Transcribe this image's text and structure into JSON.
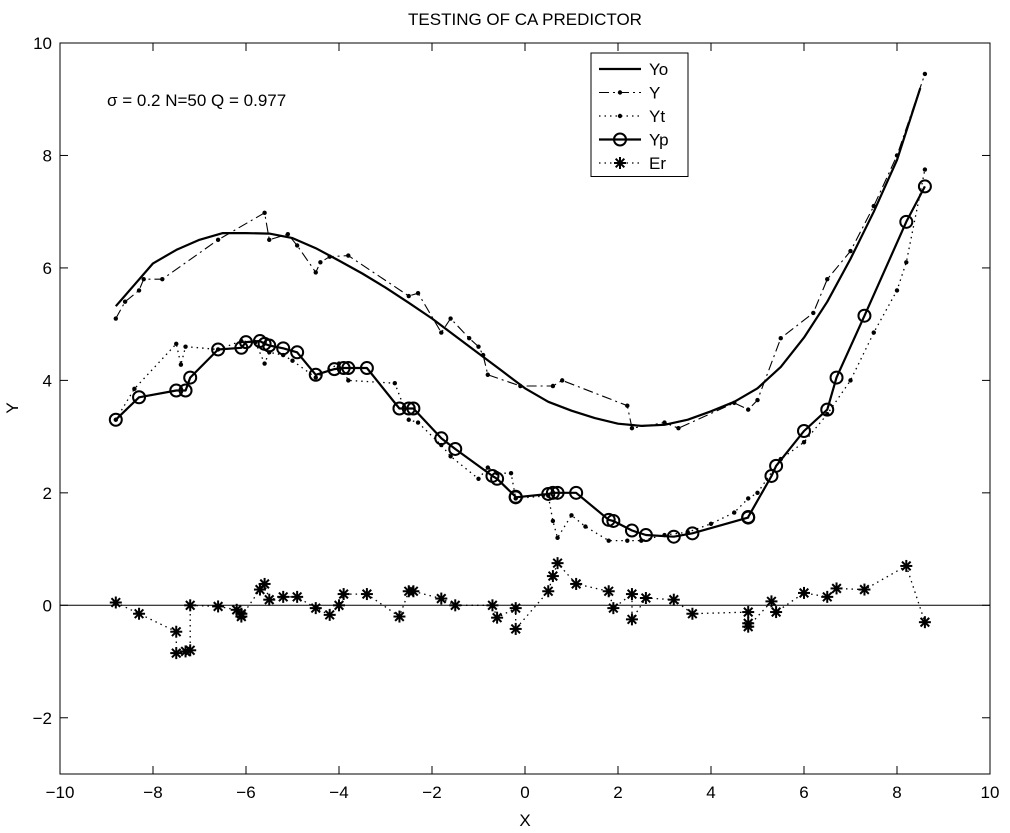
{
  "chart_data": {
    "type": "line",
    "title": "TESTING OF CA PREDICTOR",
    "xlabel": "X",
    "ylabel": "Y",
    "xlim": [
      -10,
      10
    ],
    "ylim": [
      -3,
      10
    ],
    "xticks": [
      "−10",
      "−8",
      "−6",
      "−4",
      "−2",
      "0",
      "2",
      "4",
      "6",
      "8",
      "10"
    ],
    "yticks": [
      "−2",
      "0",
      "2",
      "4",
      "6",
      "8",
      "10"
    ],
    "xtick_values": [
      -10,
      -8,
      -6,
      -4,
      -2,
      0,
      2,
      4,
      6,
      8,
      10
    ],
    "ytick_values": [
      -2,
      0,
      2,
      4,
      6,
      8,
      10
    ],
    "annotation": "σ = 0.2   N=50  Q = 0.977",
    "legend_position": "top-right",
    "series": [
      {
        "name": "Yo",
        "style": "solid",
        "x": [
          -8.8,
          -8.4,
          -8.0,
          -7.5,
          -7.0,
          -6.5,
          -6.0,
          -5.5,
          -5.0,
          -4.5,
          -4.0,
          -3.5,
          -3.0,
          -2.5,
          -2.0,
          -1.5,
          -1.0,
          -0.5,
          0.0,
          0.5,
          1.0,
          1.5,
          2.0,
          2.5,
          3.0,
          3.5,
          4.0,
          4.5,
          5.0,
          5.5,
          6.0,
          6.5,
          7.0,
          7.5,
          8.0,
          8.5
        ],
        "y": [
          5.32,
          5.7,
          6.08,
          6.32,
          6.5,
          6.62,
          6.62,
          6.61,
          6.53,
          6.35,
          6.13,
          5.9,
          5.65,
          5.38,
          5.1,
          4.79,
          4.48,
          4.17,
          3.86,
          3.62,
          3.46,
          3.33,
          3.23,
          3.19,
          3.21,
          3.3,
          3.45,
          3.62,
          3.86,
          4.24,
          4.76,
          5.4,
          6.16,
          7.0,
          7.92,
          9.2
        ]
      },
      {
        "name": "Y",
        "style": "dash-dot",
        "x": [
          -8.8,
          -8.6,
          -8.3,
          -8.2,
          -7.8,
          -6.6,
          -5.6,
          -5.5,
          -5.1,
          -4.9,
          -4.5,
          -4.4,
          -4.2,
          -3.8,
          -2.5,
          -2.3,
          -1.8,
          -1.6,
          -1.2,
          -1.0,
          -0.9,
          -0.8,
          -0.1,
          0.6,
          0.8,
          2.2,
          2.3,
          3.0,
          3.3,
          4.5,
          4.8,
          5.0,
          5.5,
          6.2,
          6.5,
          7.0,
          7.5,
          8.0,
          8.6
        ],
        "y": [
          5.1,
          5.4,
          5.6,
          5.8,
          5.8,
          6.5,
          6.98,
          6.5,
          6.6,
          6.4,
          5.92,
          6.1,
          6.2,
          6.22,
          5.5,
          5.55,
          4.85,
          5.1,
          4.75,
          4.6,
          4.45,
          4.1,
          3.9,
          3.9,
          4.0,
          3.55,
          3.15,
          3.25,
          3.15,
          3.6,
          3.48,
          3.65,
          4.75,
          5.2,
          5.8,
          6.3,
          7.1,
          8.0,
          9.45
        ]
      },
      {
        "name": "Yt",
        "style": "dotted",
        "x": [
          -8.8,
          -8.4,
          -7.5,
          -7.4,
          -7.3,
          -6.6,
          -6.1,
          -5.8,
          -5.6,
          -5.5,
          -5.2,
          -5.0,
          -4.5,
          -4.0,
          -3.8,
          -2.8,
          -2.5,
          -2.3,
          -1.8,
          -1.6,
          -1.0,
          -0.8,
          -0.6,
          -0.3,
          -0.2,
          0.5,
          0.6,
          0.7,
          1.0,
          1.3,
          1.8,
          2.2,
          2.5,
          3.0,
          3.5,
          4.0,
          4.5,
          4.8,
          5.0,
          5.5,
          6.0,
          6.5,
          7.0,
          7.5,
          8.0,
          8.2,
          8.6
        ],
        "y": [
          3.3,
          3.85,
          4.65,
          4.28,
          4.6,
          4.55,
          4.7,
          4.68,
          4.3,
          4.5,
          4.45,
          4.35,
          4.05,
          4.3,
          4.0,
          3.95,
          3.3,
          3.25,
          2.85,
          2.65,
          2.25,
          2.45,
          2.35,
          2.35,
          1.9,
          1.95,
          1.5,
          1.2,
          1.6,
          1.4,
          1.15,
          1.15,
          1.15,
          1.25,
          1.3,
          1.45,
          1.65,
          1.9,
          2.0,
          2.6,
          2.9,
          3.4,
          4.0,
          4.85,
          5.6,
          6.1,
          7.75
        ]
      },
      {
        "name": "Yp",
        "style": "solid-circles",
        "x": [
          -8.8,
          -8.3,
          -7.5,
          -7.3,
          -7.2,
          -6.6,
          -6.1,
          -6.0,
          -5.7,
          -5.6,
          -5.5,
          -5.2,
          -4.9,
          -4.5,
          -4.1,
          -3.9,
          -3.8,
          -3.4,
          -2.7,
          -2.5,
          -2.4,
          -1.8,
          -1.5,
          -0.7,
          -0.6,
          -0.2,
          -0.2,
          0.5,
          0.6,
          0.7,
          1.1,
          1.8,
          1.9,
          2.3,
          2.6,
          3.2,
          3.6,
          4.8,
          4.8,
          5.3,
          5.4,
          6.0,
          6.5,
          6.7,
          7.3,
          8.2,
          8.6
        ],
        "y": [
          3.3,
          3.7,
          3.82,
          3.82,
          4.05,
          4.55,
          4.58,
          4.68,
          4.7,
          4.65,
          4.62,
          4.57,
          4.5,
          4.1,
          4.2,
          4.22,
          4.22,
          4.22,
          3.5,
          3.5,
          3.5,
          2.97,
          2.78,
          2.3,
          2.25,
          1.93,
          1.92,
          1.98,
          2.0,
          2.0,
          2.0,
          1.52,
          1.5,
          1.33,
          1.25,
          1.22,
          1.28,
          1.56,
          1.57,
          2.3,
          2.48,
          3.1,
          3.48,
          4.05,
          5.15,
          6.82,
          7.45
        ]
      },
      {
        "name": "Er",
        "style": "dotted-stars",
        "x": [
          -8.8,
          -8.3,
          -7.5,
          -7.5,
          -7.3,
          -7.2,
          -7.2,
          -6.6,
          -6.2,
          -6.1,
          -6.1,
          -5.7,
          -5.6,
          -5.5,
          -5.2,
          -4.9,
          -4.5,
          -4.2,
          -4.0,
          -3.9,
          -3.4,
          -2.7,
          -2.5,
          -2.4,
          -1.8,
          -1.5,
          -0.7,
          -0.6,
          -0.2,
          -0.2,
          0.5,
          0.6,
          0.7,
          1.1,
          1.8,
          1.9,
          2.3,
          2.3,
          2.6,
          3.2,
          3.6,
          4.8,
          4.8,
          4.8,
          5.3,
          5.4,
          6.0,
          6.5,
          6.7,
          7.3,
          8.2,
          8.6
        ],
        "y": [
          0.05,
          -0.15,
          -0.47,
          -0.85,
          -0.82,
          -0.8,
          0.0,
          -0.02,
          -0.08,
          -0.15,
          -0.2,
          0.28,
          0.38,
          0.1,
          0.15,
          0.15,
          -0.05,
          -0.17,
          0.0,
          0.2,
          0.2,
          -0.2,
          0.25,
          0.25,
          0.12,
          0.0,
          0.0,
          -0.22,
          -0.05,
          -0.42,
          0.25,
          0.52,
          0.75,
          0.38,
          0.25,
          -0.05,
          0.2,
          -0.25,
          0.13,
          0.1,
          -0.15,
          -0.12,
          -0.32,
          -0.38,
          0.07,
          -0.12,
          0.22,
          0.15,
          0.3,
          0.28,
          0.7,
          -0.3
        ]
      }
    ]
  }
}
